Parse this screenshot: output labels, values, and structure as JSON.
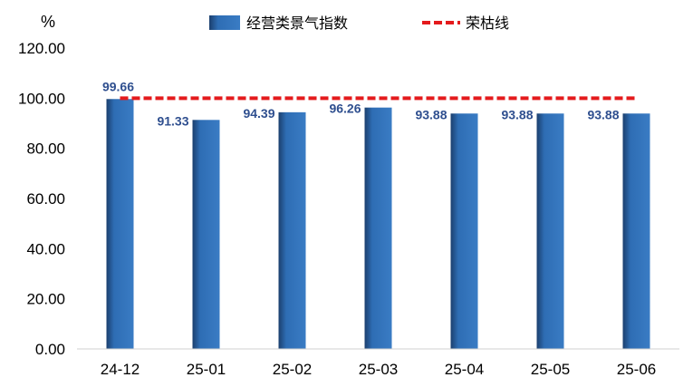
{
  "chart_data": {
    "type": "bar",
    "ylabel": "%",
    "ylim": [
      0,
      120
    ],
    "yticks": [
      "0.00",
      "20.00",
      "40.00",
      "60.00",
      "80.00",
      "100.00",
      "120.00"
    ],
    "categories": [
      "24-12",
      "25-01",
      "25-02",
      "25-03",
      "25-04",
      "25-05",
      "25-06"
    ],
    "series": [
      {
        "name": "经营类景气指数",
        "type": "bar",
        "values": [
          99.66,
          91.33,
          94.39,
          96.26,
          93.88,
          93.88,
          93.88
        ],
        "labels": [
          "99.66",
          "91.33",
          "94.39",
          "96.26",
          "93.88",
          "93.88",
          "93.88"
        ],
        "color": "#2E6DB4"
      },
      {
        "name": "荣枯线",
        "type": "line",
        "style": "dashed",
        "values": [
          100,
          100,
          100,
          100,
          100,
          100,
          100
        ],
        "color": "#E41A1C"
      }
    ],
    "legend_position": "top",
    "grid": false
  }
}
